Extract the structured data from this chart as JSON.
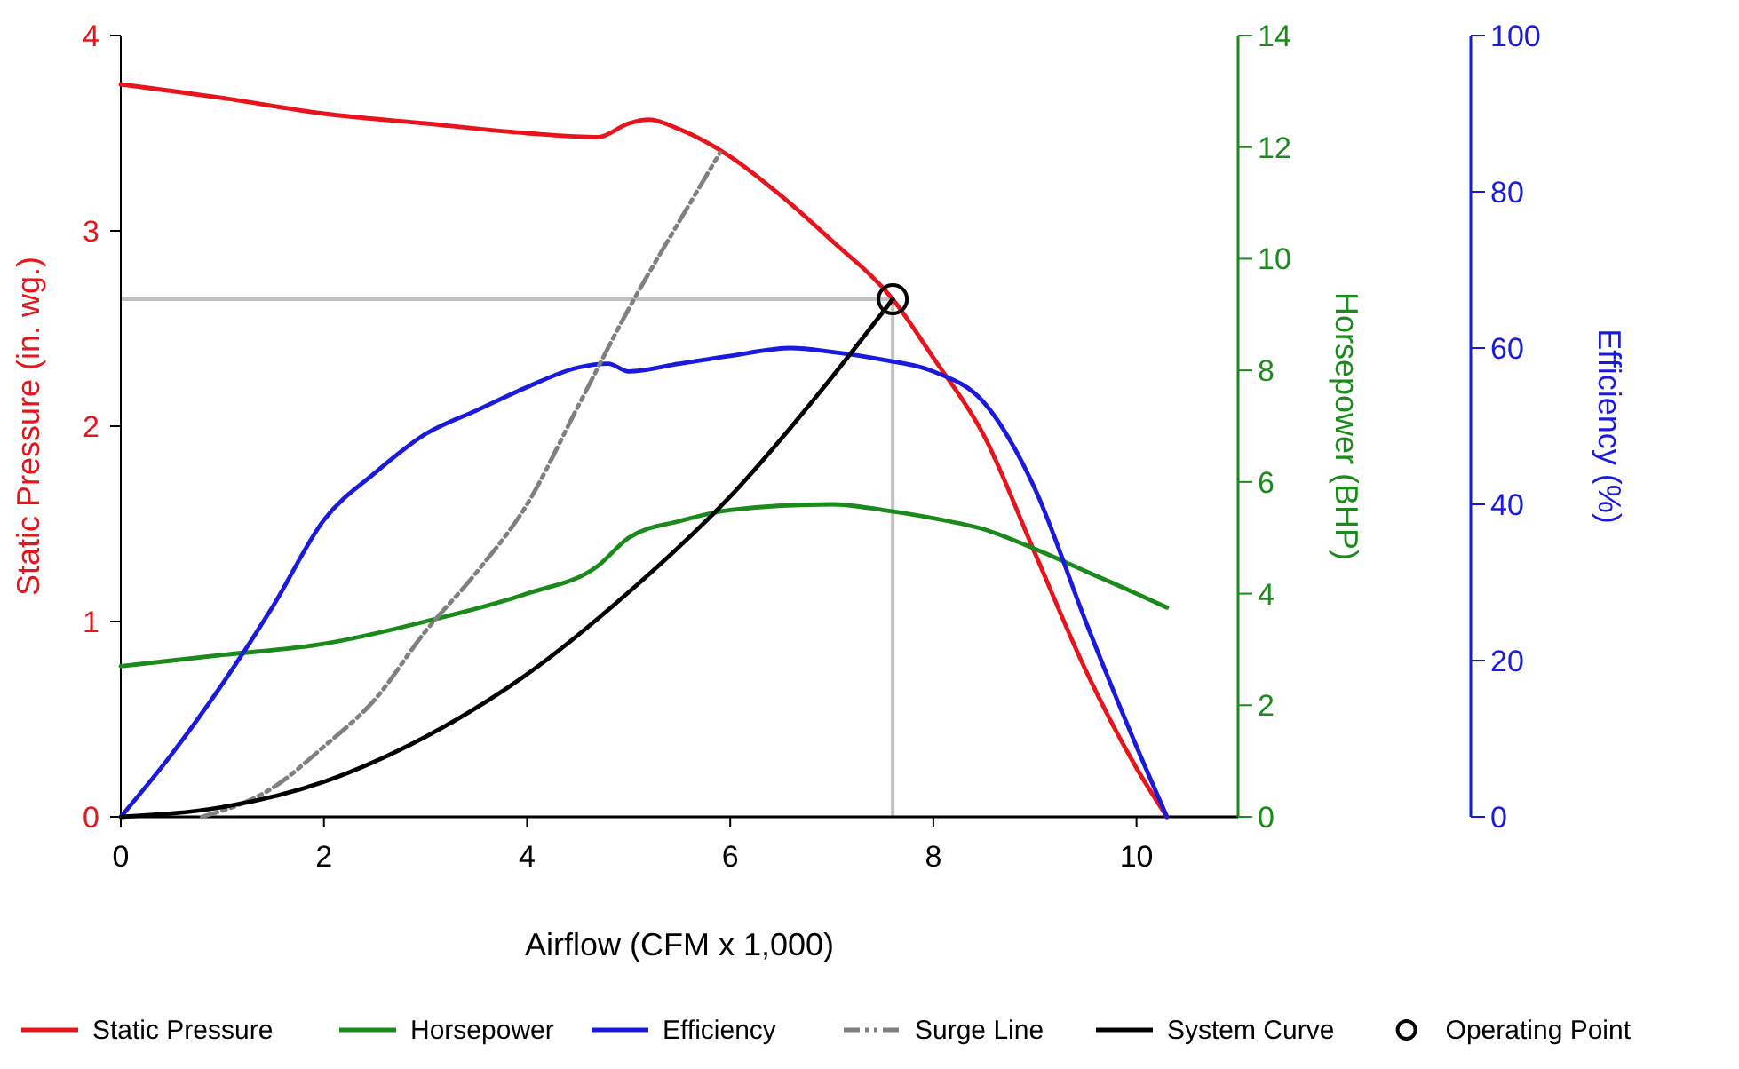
{
  "chart_data": {
    "type": "line",
    "xlabel": "Airflow  (CFM x 1,000)",
    "ylabel": "Static Pressure  (in. wg.)",
    "y2label": "Horsepower  (BHP)",
    "y3label": "Efficiency  (%)",
    "xlim": [
      0,
      11
    ],
    "xticks": [
      0,
      2,
      4,
      6,
      8,
      10
    ],
    "ylim": [
      0,
      4
    ],
    "yticks": [
      0,
      1,
      2,
      3,
      4
    ],
    "y2lim": [
      0,
      14
    ],
    "y2ticks": [
      0,
      2,
      4,
      6,
      8,
      10,
      12,
      14
    ],
    "y3lim": [
      0,
      100
    ],
    "y3ticks": [
      0,
      20,
      40,
      60,
      80,
      100
    ],
    "grid": false,
    "legend": "bottom",
    "ref_lines": [
      {
        "axis": "y",
        "value": 2.65,
        "color": "#c0c0c0"
      },
      {
        "axis": "x",
        "value": 7.6,
        "color": "#c0c0c0"
      }
    ],
    "series": [
      {
        "name": "Static Pressure",
        "color": "#e8141b",
        "x": [
          0,
          1,
          2,
          3,
          4,
          4.7,
          5,
          5.2,
          5.5,
          6,
          6.5,
          7,
          7.6,
          8,
          8.5,
          9,
          9.5,
          10,
          10.3
        ],
        "values": [
          3.75,
          3.68,
          3.6,
          3.55,
          3.5,
          3.48,
          3.55,
          3.57,
          3.52,
          3.38,
          3.18,
          2.95,
          2.65,
          2.35,
          1.95,
          1.35,
          0.75,
          0.25,
          0
        ]
      },
      {
        "name": "Horsepower",
        "color": "#1a8a1a",
        "axis": "y2",
        "x": [
          0,
          1,
          2,
          3,
          4,
          4.7,
          5,
          5.5,
          6,
          7,
          7.5,
          8,
          8.5,
          9,
          9.5,
          10,
          10.3
        ],
        "values": [
          2.7,
          2.9,
          3.1,
          3.5,
          4.0,
          4.5,
          5.0,
          5.3,
          5.5,
          5.6,
          5.5,
          5.35,
          5.15,
          4.8,
          4.4,
          4.0,
          3.75
        ]
      },
      {
        "name": "Efficiency",
        "color": "#1a1adc",
        "axis": "y3",
        "x": [
          0,
          0.5,
          1,
          1.5,
          2,
          2.5,
          3,
          3.5,
          4,
          4.5,
          4.8,
          5,
          5.5,
          6,
          6.6,
          7,
          7.5,
          8,
          8.5,
          9,
          9.5,
          10,
          10.3
        ],
        "values": [
          0,
          8,
          17,
          27,
          38,
          44,
          49,
          52,
          55,
          57.5,
          58,
          57,
          58,
          59,
          60,
          59.5,
          58.5,
          57,
          53,
          42,
          25,
          9,
          0
        ]
      },
      {
        "name": "Surge Line",
        "color": "#808080",
        "line_style": "dashed",
        "x": [
          0.8,
          1.5,
          2,
          2.5,
          3,
          3.5,
          4,
          4.5,
          5,
          5.5,
          5.9
        ],
        "values": [
          0,
          0.15,
          0.36,
          0.6,
          0.95,
          1.25,
          1.6,
          2.1,
          2.6,
          3.05,
          3.4
        ]
      },
      {
        "name": "System Curve",
        "color": "#000000",
        "x": [
          0,
          1,
          2,
          3,
          4,
          5,
          6,
          7,
          7.6
        ],
        "values": [
          0,
          0.05,
          0.18,
          0.41,
          0.73,
          1.15,
          1.64,
          2.25,
          2.65
        ]
      },
      {
        "name": "Operating Point",
        "type": "scatter",
        "marker": "circle",
        "color": "#000000",
        "x": [
          7.6
        ],
        "values": [
          2.65
        ]
      }
    ]
  }
}
